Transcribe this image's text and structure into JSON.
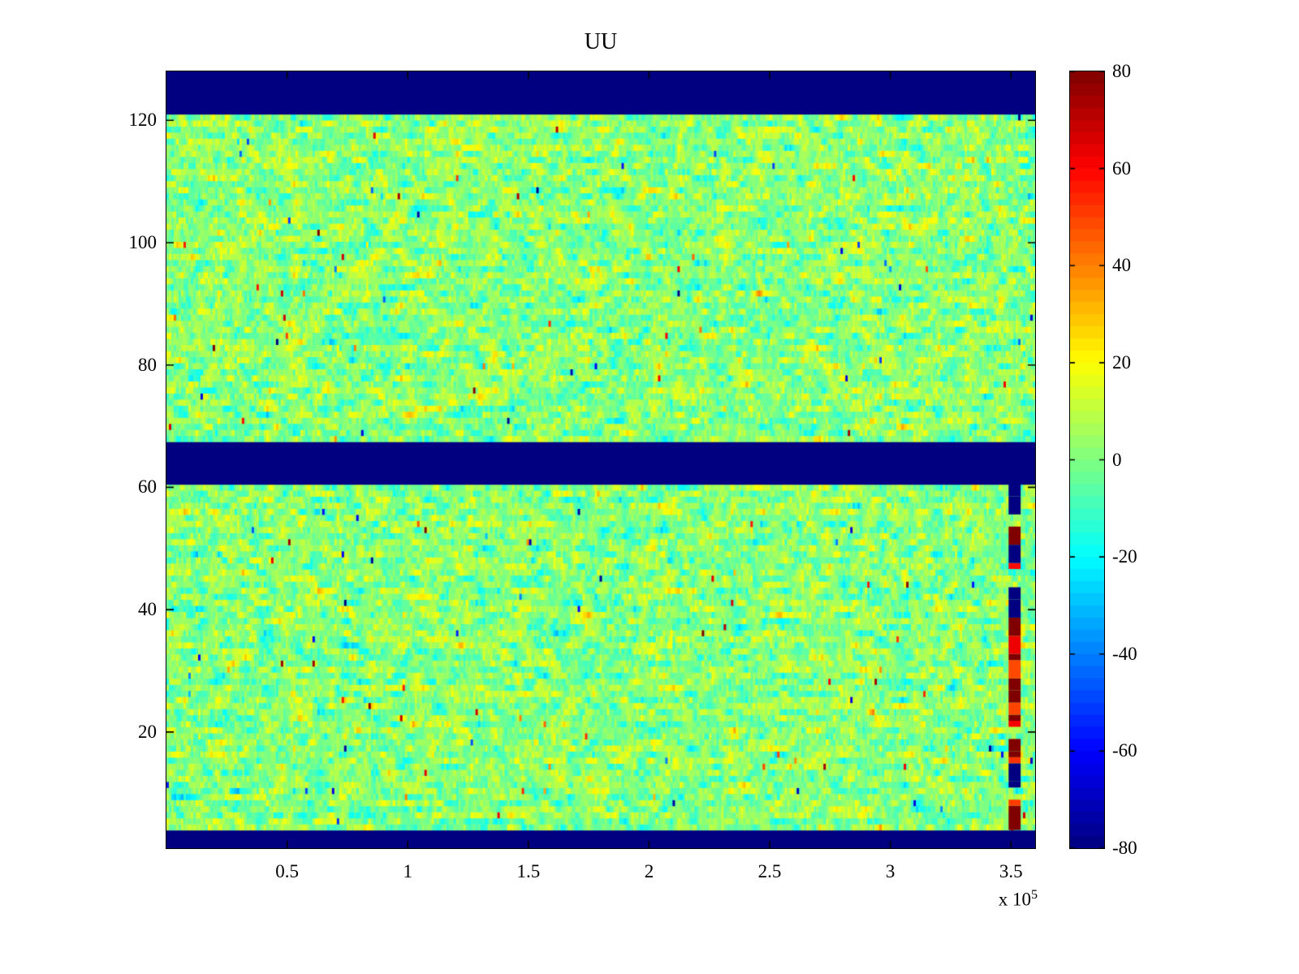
{
  "figure": {
    "background": "#ffffff",
    "frame_color": "#000000",
    "text_color": "#000000"
  },
  "chart_data": {
    "type": "heatmap",
    "title": "UU",
    "x_axis": {
      "label": "",
      "range": [
        0,
        360000
      ],
      "ticks": [
        50000,
        100000,
        150000,
        200000,
        250000,
        300000,
        350000
      ],
      "tick_labels": [
        "0.5",
        "1",
        "1.5",
        "2",
        "2.5",
        "3",
        "3.5"
      ],
      "exponent_base": "x 10",
      "exponent": "5"
    },
    "y_axis": {
      "label": "",
      "range": [
        1,
        128
      ],
      "ticks": [
        20,
        40,
        60,
        80,
        100,
        120
      ],
      "tick_labels": [
        "20",
        "40",
        "60",
        "80",
        "100",
        "120"
      ]
    },
    "colorbar": {
      "colormap": "jet",
      "position": "right",
      "range": [
        -80,
        80
      ],
      "levels": 64,
      "ticks": [
        80,
        60,
        40,
        20,
        0,
        -20,
        -40,
        -60,
        -80
      ],
      "tick_labels": [
        "80",
        "60",
        "40",
        "20",
        "0",
        "-20",
        "-40",
        "-60",
        "-80"
      ]
    },
    "grid_rows": 128,
    "grid_cols": 357,
    "background_noise": {
      "mean": 1.5,
      "std": 7,
      "row_correlation": 0.62,
      "spike_probability": 0.004,
      "spike_min": 35,
      "spike_max": 75,
      "seed": 1234567
    },
    "solid_low_value_row_bands": [
      [
        1,
        3
      ],
      [
        61,
        67
      ],
      [
        122,
        128
      ]
    ],
    "solid_band_value": -85,
    "anomaly_column": {
      "x_start_value": 349000,
      "x_end_value": 354000,
      "row_start": 4,
      "row_end": 60,
      "seed": 424242,
      "forced_bottom_block": {
        "rows": [
          4,
          7
        ],
        "value": 80
      }
    }
  }
}
